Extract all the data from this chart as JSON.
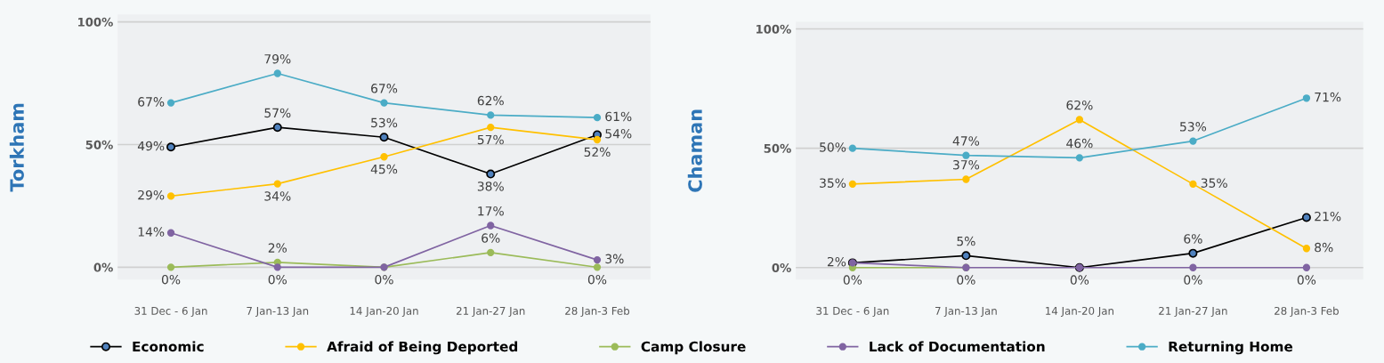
{
  "chart_data": [
    {
      "type": "line",
      "ylabel": "Torkham",
      "categories": [
        "31 Dec - 6 Jan",
        "7 Jan-13 Jan",
        "14 Jan-20 Jan",
        "21 Jan-27 Jan",
        "28 Jan-3 Feb"
      ],
      "ylim": [
        -5,
        103
      ],
      "yticks": [
        {
          "value": 0,
          "label": "0%"
        },
        {
          "value": 50,
          "label": "50%"
        },
        {
          "value": 100,
          "label": "100%"
        }
      ],
      "grid": "y",
      "marker": "circle",
      "legend": "bottom",
      "series": [
        {
          "name": "Economic",
          "color": "#000000",
          "values": [
            49,
            57,
            53,
            38,
            54
          ],
          "value_labels": [
            "49%",
            "57%",
            "53%",
            "38%",
            "54%"
          ]
        },
        {
          "name": "Afraid of Being Deported",
          "color": "#ffc000",
          "values": [
            29,
            34,
            45,
            57,
            52
          ],
          "value_labels": [
            "29%",
            "34%",
            "45%",
            "57%",
            "52%"
          ]
        },
        {
          "name": "Camp Closure",
          "color": "#9bbb59",
          "values": [
            0,
            2,
            0,
            6,
            0
          ],
          "value_labels": [
            "0%",
            "2%",
            "0%",
            "6%",
            "0%"
          ]
        },
        {
          "name": "Lack of Documentation",
          "color": "#8064a2",
          "values": [
            14,
            0,
            0,
            17,
            3
          ],
          "value_labels": [
            "14%",
            "0%",
            null,
            "17%",
            "3%"
          ]
        },
        {
          "name": "Returning Home",
          "color": "#4bacc6",
          "values": [
            67,
            79,
            67,
            62,
            61
          ],
          "value_labels": [
            "67%",
            "79%",
            "67%",
            "62%",
            "61%"
          ]
        }
      ]
    },
    {
      "type": "line",
      "ylabel": "Chaman",
      "categories": [
        "31 Dec - 6 Jan",
        "7 Jan-13 Jan",
        "14 Jan-20 Jan",
        "21 Jan-27 Jan",
        "28 Jan-3 Feb"
      ],
      "ylim": [
        -5,
        103
      ],
      "yticks": [
        {
          "value": 0,
          "label": "0%"
        },
        {
          "value": 50,
          "label": "50%"
        },
        {
          "value": 100,
          "label": "100%"
        }
      ],
      "grid": "y",
      "marker": "circle",
      "series": [
        {
          "color": "#000000",
          "values": [
            2,
            5,
            0,
            6,
            21
          ],
          "value_labels": [
            "2%",
            "5%",
            null,
            "6%",
            "21%"
          ]
        },
        {
          "color": "#ffc000",
          "values": [
            35,
            37,
            62,
            35,
            8
          ],
          "value_labels": [
            "35%",
            "37%",
            "62%",
            "35%",
            "8%"
          ]
        },
        {
          "color": "#9bbb59",
          "values": [
            0,
            0,
            null,
            null,
            null
          ],
          "value_labels": [
            "0%",
            null,
            null,
            null,
            null
          ]
        },
        {
          "color": "#8064a2",
          "values": [
            2,
            0,
            0,
            0,
            0
          ],
          "value_labels": [
            null,
            "0%",
            "0%",
            "0%",
            "0%"
          ]
        },
        {
          "color": "#4bacc6",
          "values": [
            50,
            47,
            46,
            53,
            71
          ],
          "value_labels": [
            "50%",
            "47%",
            "46%",
            "53%",
            "71%"
          ]
        }
      ]
    }
  ]
}
